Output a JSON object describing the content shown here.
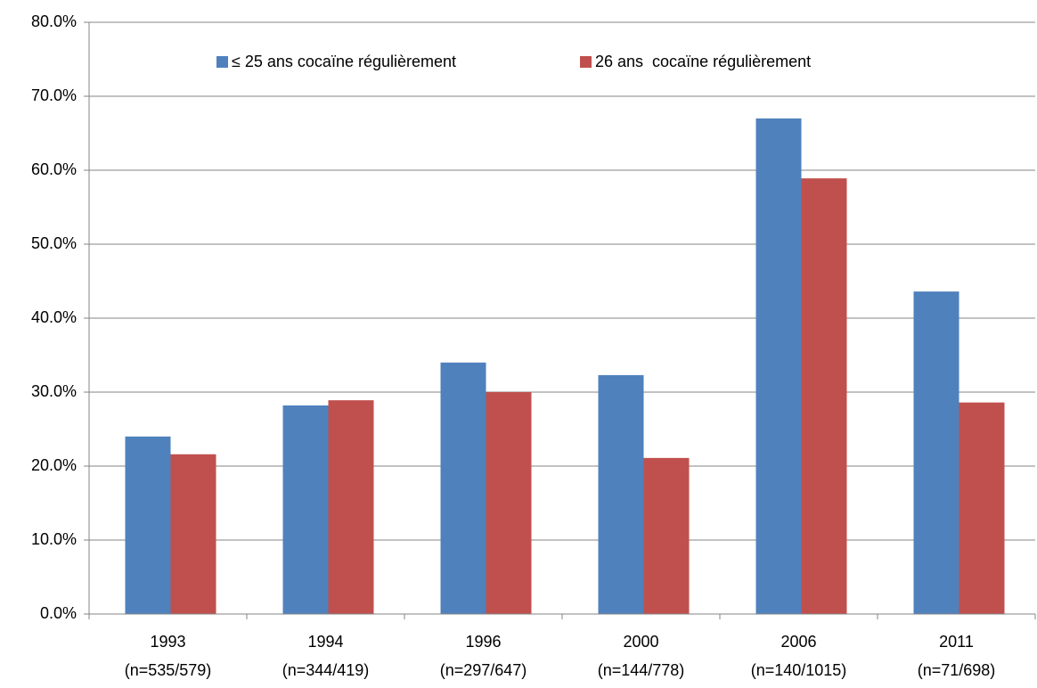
{
  "chart_data": {
    "type": "bar",
    "categories": [
      [
        "1993",
        "(n=535/579)"
      ],
      [
        "1994",
        "(n=344/419)"
      ],
      [
        "1996",
        "(n=297/647)"
      ],
      [
        "2000",
        "(n=144/778)"
      ],
      [
        "2006",
        "(n=140/1015)"
      ],
      [
        "2011",
        "(n=71/698)"
      ]
    ],
    "series": [
      {
        "name": "≤ 25 ans cocaïne régulièrement",
        "color": "#4f81bd",
        "values": [
          24.0,
          28.2,
          34.0,
          32.3,
          67.0,
          43.6
        ]
      },
      {
        "name": "26 ans  cocaïne régulièrement",
        "color": "#c0504d",
        "values": [
          21.6,
          28.9,
          30.0,
          21.1,
          58.9,
          28.6
        ]
      }
    ],
    "ylim": [
      0,
      80
    ],
    "yticks": [
      {
        "value": 0,
        "label": "0.0%"
      },
      {
        "value": 10,
        "label": "10.0%"
      },
      {
        "value": 20,
        "label": "20.0%"
      },
      {
        "value": 30,
        "label": "30.0%"
      },
      {
        "value": 40,
        "label": "40.0%"
      },
      {
        "value": 50,
        "label": "50.0%"
      },
      {
        "value": 60,
        "label": "60.0%"
      },
      {
        "value": 70,
        "label": "70.0%"
      },
      {
        "value": 80,
        "label": "80.0%"
      }
    ],
    "grid": true,
    "legend": "top"
  }
}
